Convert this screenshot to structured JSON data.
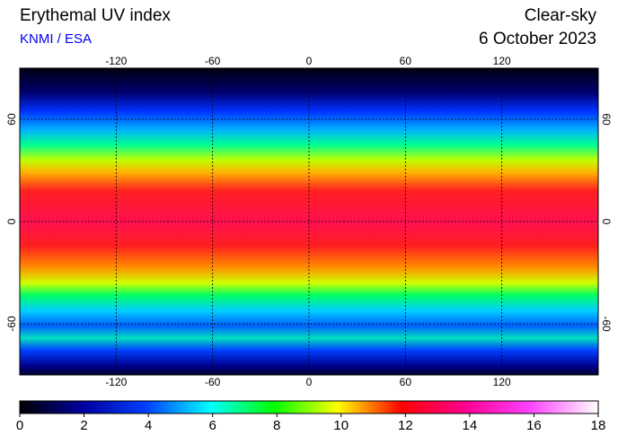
{
  "header": {
    "title": "Erythemal UV index",
    "source": "KNMI / ESA",
    "condition": "Clear-sky",
    "date": "6 October 2023"
  },
  "map": {
    "lon_ticks": [
      -120,
      -60,
      0,
      60,
      120
    ],
    "lat_ticks": [
      60,
      0,
      -60
    ],
    "lon_range": [
      -180,
      180
    ],
    "lat_range": [
      -90,
      90
    ]
  },
  "colorbar": {
    "ticks": [
      0,
      2,
      4,
      6,
      8,
      10,
      12,
      14,
      16,
      18
    ],
    "range": [
      0,
      18
    ]
  }
}
